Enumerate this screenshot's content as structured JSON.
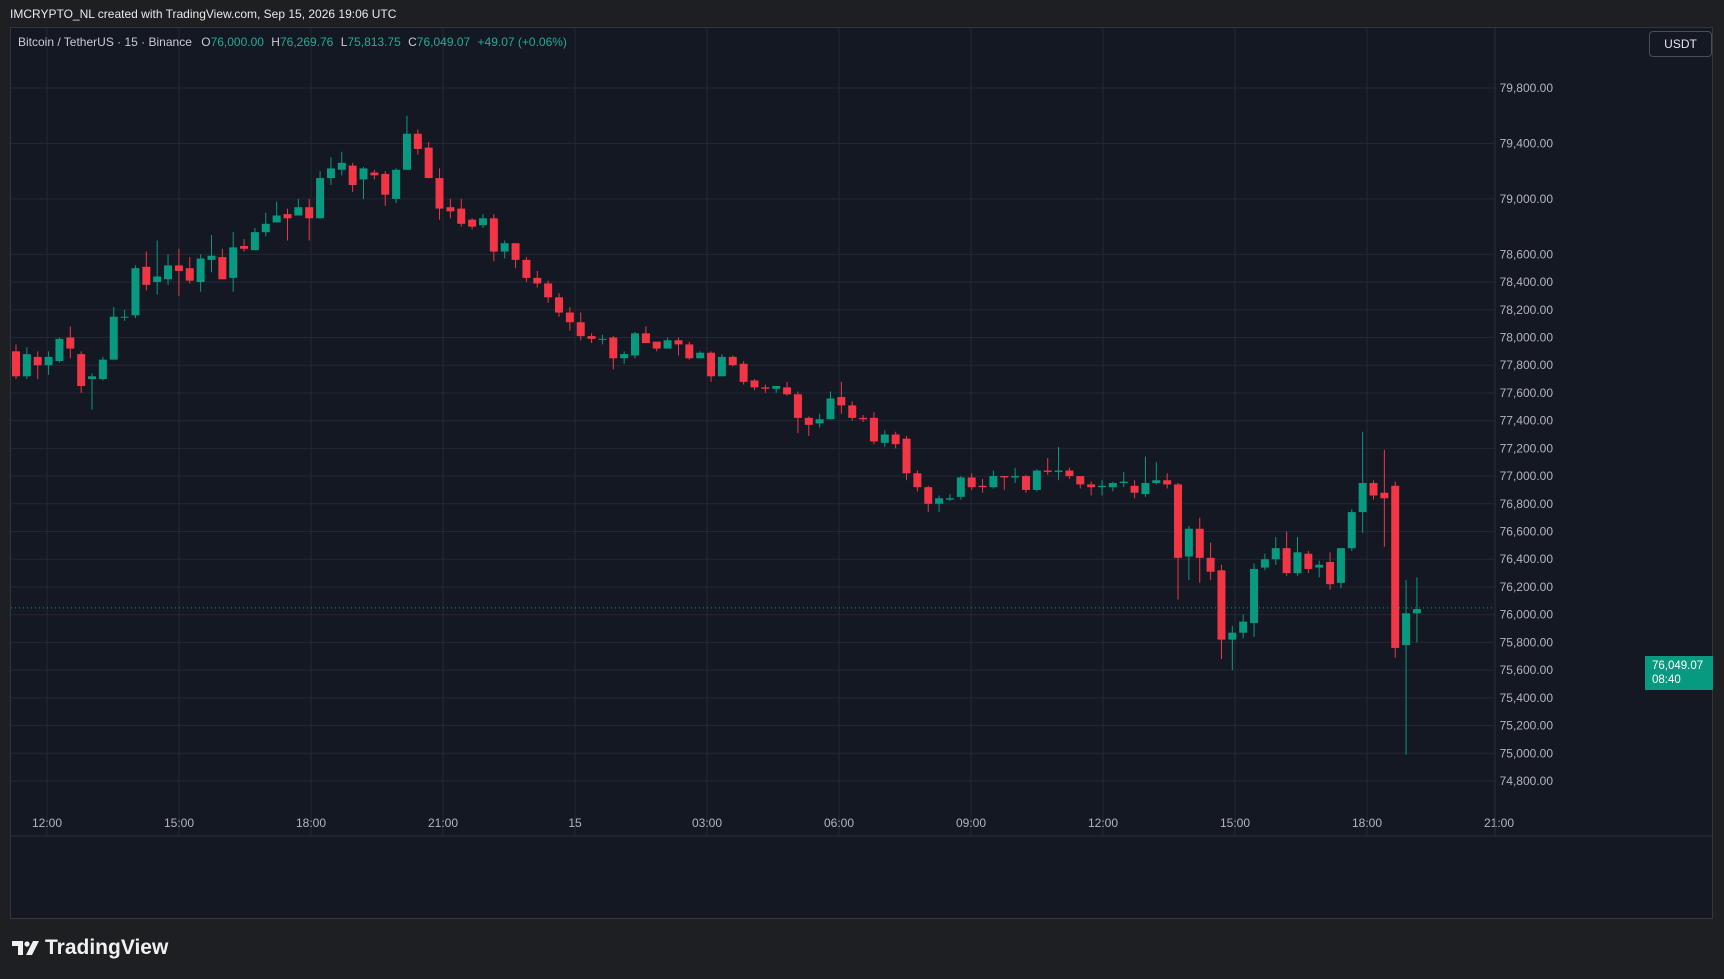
{
  "caption": "IMCRYPTO_NL created with TradingView.com, Sep 15, 2026 19:06 UTC",
  "legend": {
    "symbol": "Bitcoin / TetherUS · 15 · Binance",
    "o_key": "O",
    "o_val": "76,000.00",
    "h_key": "H",
    "h_val": "76,269.76",
    "l_key": "L",
    "l_val": "75,813.75",
    "c_key": "C",
    "c_val": "76,049.07",
    "change": "+49.07 (+0.06%)"
  },
  "currency_button": "USDT",
  "last_price_badge": {
    "price": "76,049.07",
    "countdown": "08:40"
  },
  "brand": {
    "name": "TradingView",
    "icon": "tradingview-logo-icon"
  },
  "colors": {
    "up": "#089981",
    "down": "#f23645",
    "background": "#141823",
    "grid": "#232733",
    "axis_text": "#b2b5be"
  },
  "chart_data": {
    "type": "candlestick",
    "interval_minutes": 15,
    "y_axis_labels": [
      "79,800.00",
      "79,400.00",
      "79,000.00",
      "78,600.00",
      "78,400.00",
      "78,200.00",
      "78,000.00",
      "77,800.00",
      "77,600.00",
      "77,400.00",
      "77,200.00",
      "77,000.00",
      "76,800.00",
      "76,600.00",
      "76,400.00",
      "76,200.00",
      "76,000.00",
      "75,800.00",
      "75,600.00",
      "75,400.00",
      "75,200.00",
      "75,000.00",
      "74,800.00"
    ],
    "y_axis_values": [
      79800,
      79400,
      79000,
      78600,
      78400,
      78200,
      78000,
      77800,
      77600,
      77400,
      77200,
      77000,
      76800,
      76600,
      76400,
      76200,
      76000,
      75800,
      75600,
      75400,
      75200,
      75000,
      74800
    ],
    "ylim": [
      74700,
      80200
    ],
    "x_axis_labels": [
      "12:00",
      "15:00",
      "18:00",
      "21:00",
      "15",
      "03:00",
      "06:00",
      "09:00",
      "12:00",
      "15:00",
      "18:00",
      "21:00"
    ],
    "grid": true,
    "last_price": 76049.07,
    "candles": [
      [
        77900,
        77720,
        77950,
        77700
      ],
      [
        77720,
        77880,
        77930,
        77700
      ],
      [
        77860,
        77800,
        77900,
        77700
      ],
      [
        77800,
        77860,
        77900,
        77730
      ],
      [
        77830,
        77990,
        78000,
        77820
      ],
      [
        78000,
        77920,
        78080,
        77850
      ],
      [
        77880,
        77650,
        77900,
        77600
      ],
      [
        77700,
        77720,
        77740,
        77480
      ],
      [
        77700,
        77840,
        77860,
        77690
      ],
      [
        77840,
        78150,
        78220,
        77840
      ],
      [
        78150,
        78150,
        78200,
        78120
      ],
      [
        78160,
        78500,
        78520,
        78140
      ],
      [
        78510,
        78380,
        78620,
        78340
      ],
      [
        78400,
        78440,
        78700,
        78310
      ],
      [
        78420,
        78520,
        78600,
        78380
      ],
      [
        78520,
        78480,
        78640,
        78300
      ],
      [
        78500,
        78410,
        78580,
        78390
      ],
      [
        78400,
        78570,
        78600,
        78330
      ],
      [
        78560,
        78590,
        78740,
        78470
      ],
      [
        78580,
        78420,
        78640,
        78420
      ],
      [
        78430,
        78650,
        78760,
        78330
      ],
      [
        78660,
        78640,
        78710,
        78620
      ],
      [
        78630,
        78760,
        78790,
        78660
      ],
      [
        78760,
        78820,
        78900,
        78730
      ],
      [
        78830,
        78880,
        78980,
        78830
      ],
      [
        78890,
        78860,
        78930,
        78700
      ],
      [
        78880,
        78940,
        79000,
        78900
      ],
      [
        78940,
        78860,
        79000,
        78700
      ],
      [
        78860,
        79150,
        79200,
        78860
      ],
      [
        79150,
        79220,
        79300,
        79100
      ],
      [
        79210,
        79260,
        79340,
        79170
      ],
      [
        79240,
        79100,
        79260,
        79050
      ],
      [
        79140,
        79220,
        79230,
        79000
      ],
      [
        79190,
        79170,
        79210,
        79140
      ],
      [
        79180,
        79030,
        79200,
        78950
      ],
      [
        79000,
        79210,
        79220,
        78970
      ],
      [
        79210,
        79470,
        79600,
        79220
      ],
      [
        79470,
        79360,
        79500,
        79320
      ],
      [
        79370,
        79150,
        79410,
        79150
      ],
      [
        79150,
        78930,
        79220,
        78850
      ],
      [
        78940,
        78910,
        79000,
        78860
      ],
      [
        78930,
        78820,
        79000,
        78800
      ],
      [
        78850,
        78800,
        78860,
        78780
      ],
      [
        78810,
        78860,
        78890,
        78790
      ],
      [
        78860,
        78620,
        78890,
        78550
      ],
      [
        78620,
        78680,
        78700,
        78570
      ],
      [
        78680,
        78560,
        78680,
        78500
      ],
      [
        78560,
        78430,
        78580,
        78400
      ],
      [
        78430,
        78390,
        78480,
        78360
      ],
      [
        78390,
        78290,
        78410,
        78250
      ],
      [
        78290,
        78180,
        78320,
        78150
      ],
      [
        78180,
        78110,
        78220,
        78050
      ],
      [
        78110,
        78010,
        78180,
        77980
      ],
      [
        78010,
        77990,
        78030,
        77960
      ],
      [
        77990,
        77990,
        78020,
        77950
      ],
      [
        78000,
        77850,
        78010,
        77770
      ],
      [
        77850,
        77880,
        77900,
        77810
      ],
      [
        77870,
        78030,
        78040,
        77850
      ],
      [
        78030,
        77960,
        78080,
        77960
      ],
      [
        77970,
        77920,
        77950,
        77900
      ],
      [
        77920,
        77980,
        78000,
        77930
      ],
      [
        77980,
        77950,
        78000,
        77870
      ],
      [
        77950,
        77850,
        77970,
        77840
      ],
      [
        77850,
        77890,
        77900,
        77850
      ],
      [
        77890,
        77720,
        77900,
        77680
      ],
      [
        77720,
        77860,
        77880,
        77720
      ],
      [
        77860,
        77800,
        77870,
        77790
      ],
      [
        77810,
        77680,
        77830,
        77660
      ],
      [
        77690,
        77640,
        77700,
        77620
      ],
      [
        77640,
        77630,
        77660,
        77600
      ],
      [
        77630,
        77650,
        77650,
        77600
      ],
      [
        77640,
        77590,
        77680,
        77580
      ],
      [
        77590,
        77420,
        77610,
        77310
      ],
      [
        77420,
        77370,
        77430,
        77290
      ],
      [
        77380,
        77410,
        77450,
        77350
      ],
      [
        77410,
        77560,
        77610,
        77410
      ],
      [
        77570,
        77510,
        77680,
        77450
      ],
      [
        77510,
        77420,
        77540,
        77400
      ],
      [
        77420,
        77410,
        77440,
        77390
      ],
      [
        77420,
        77250,
        77460,
        77230
      ],
      [
        77240,
        77300,
        77330,
        77210
      ],
      [
        77300,
        77230,
        77320,
        77200
      ],
      [
        77270,
        77020,
        77290,
        76970
      ],
      [
        77020,
        76920,
        77040,
        76890
      ],
      [
        76920,
        76800,
        76930,
        76740
      ],
      [
        76800,
        76840,
        76860,
        76740
      ],
      [
        76830,
        76840,
        76870,
        76820
      ],
      [
        76850,
        76990,
        77000,
        76830
      ],
      [
        76990,
        76920,
        77020,
        76900
      ],
      [
        76930,
        76920,
        76980,
        76880
      ],
      [
        76920,
        77000,
        77040,
        76910
      ],
      [
        77000,
        76990,
        77000,
        76900
      ],
      [
        76990,
        77000,
        77060,
        76950
      ],
      [
        77000,
        76900,
        77010,
        76880
      ],
      [
        76900,
        77040,
        77050,
        76890
      ],
      [
        77040,
        77030,
        77130,
        77010
      ],
      [
        77030,
        77040,
        77210,
        76970
      ],
      [
        77040,
        77000,
        77060,
        76980
      ],
      [
        77000,
        76940,
        77000,
        76910
      ],
      [
        76940,
        76920,
        76960,
        76860
      ],
      [
        76920,
        76930,
        76970,
        76860
      ],
      [
        76920,
        76950,
        76960,
        76890
      ],
      [
        76950,
        76960,
        77030,
        76920
      ],
      [
        76930,
        76880,
        76970,
        76840
      ],
      [
        76870,
        76950,
        77140,
        76850
      ],
      [
        76950,
        76970,
        77100,
        76940
      ],
      [
        76970,
        76940,
        77020,
        76910
      ],
      [
        76940,
        76410,
        76950,
        76110
      ],
      [
        76420,
        76620,
        76640,
        76250
      ],
      [
        76620,
        76410,
        76700,
        76230
      ],
      [
        76410,
        76310,
        76520,
        76250
      ],
      [
        76320,
        75820,
        76360,
        75680
      ],
      [
        75820,
        75870,
        75920,
        75600
      ],
      [
        75870,
        75950,
        76000,
        75830
      ],
      [
        75940,
        76330,
        76370,
        75840
      ],
      [
        76340,
        76400,
        76440,
        76320
      ],
      [
        76400,
        76480,
        76560,
        76360
      ],
      [
        76480,
        76300,
        76600,
        76280
      ],
      [
        76300,
        76450,
        76560,
        76280
      ],
      [
        76440,
        76330,
        76460,
        76300
      ],
      [
        76340,
        76360,
        76390,
        76270
      ],
      [
        76380,
        76220,
        76450,
        76180
      ],
      [
        76230,
        76480,
        76480,
        76190
      ],
      [
        76480,
        76740,
        76760,
        76460
      ],
      [
        76740,
        76950,
        77320,
        76590
      ],
      [
        76950,
        76860,
        76970,
        76830
      ],
      [
        76880,
        76840,
        77190,
        76490
      ],
      [
        76930,
        75760,
        76960,
        75690
      ],
      [
        75780,
        76010,
        76250,
        74990
      ],
      [
        76010,
        76040,
        76270,
        75800
      ]
    ]
  }
}
